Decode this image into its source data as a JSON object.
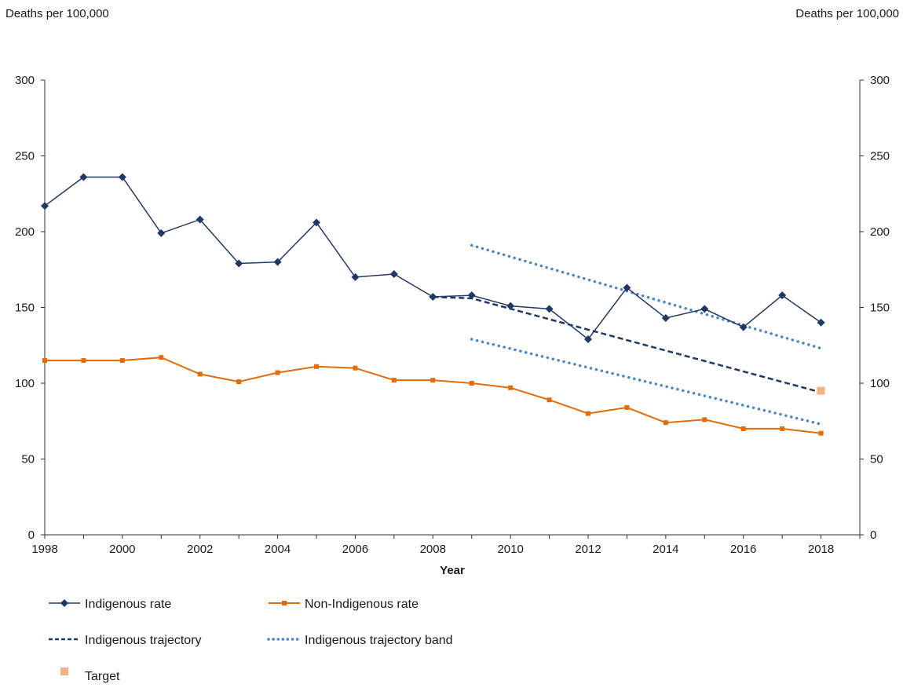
{
  "chart_data": {
    "type": "line",
    "title": "",
    "xlabel": "Year",
    "ylabel_left": "Deaths per 100,000",
    "ylabel_right": "Deaths per 100,000",
    "xlim": [
      1998,
      2019
    ],
    "ylim": [
      0,
      300
    ],
    "x_ticks": [
      1998,
      2000,
      2002,
      2004,
      2006,
      2008,
      2010,
      2012,
      2014,
      2016,
      2018
    ],
    "x_tick_labels": [
      "1998",
      "2000",
      "2002",
      "2004",
      "2006",
      "2008",
      "2010",
      "2012",
      "2014",
      "2016",
      "2018"
    ],
    "y_ticks": [
      0,
      50,
      100,
      150,
      200,
      250,
      300
    ],
    "y_tick_labels": [
      "0",
      "50",
      "100",
      "150",
      "200",
      "250",
      "300"
    ],
    "grid": false,
    "legend_position": "bottom",
    "series": [
      {
        "name": "Indigenous rate",
        "style": "line-diamond",
        "color": "#1f3864",
        "x": [
          1998,
          1999,
          2000,
          2001,
          2002,
          2003,
          2004,
          2005,
          2006,
          2007,
          2008,
          2009,
          2010,
          2011,
          2012,
          2013,
          2014,
          2015,
          2016,
          2017,
          2018
        ],
        "values": [
          217,
          236,
          236,
          199,
          208,
          179,
          180,
          206,
          170,
          172,
          157,
          158,
          151,
          149,
          129,
          163,
          143,
          149,
          137,
          158,
          140
        ]
      },
      {
        "name": "Non-Indigenous rate",
        "style": "line-square",
        "color": "#e36c0a",
        "x": [
          1998,
          1999,
          2000,
          2001,
          2002,
          2003,
          2004,
          2005,
          2006,
          2007,
          2008,
          2009,
          2010,
          2011,
          2012,
          2013,
          2014,
          2015,
          2016,
          2017,
          2018
        ],
        "values": [
          115,
          115,
          115,
          117,
          106,
          101,
          107,
          111,
          110,
          102,
          102,
          100,
          97,
          89,
          80,
          84,
          74,
          76,
          70,
          70,
          67
        ]
      },
      {
        "name": "Indigenous trajectory",
        "style": "dashed",
        "color": "#1f3864",
        "x": [
          2008,
          2009,
          2018
        ],
        "values": [
          157,
          156,
          94
        ]
      },
      {
        "name": "Indigenous trajectory band",
        "style": "dotted",
        "color": "#4a86c5",
        "segments": [
          {
            "x": [
              2009,
              2018
            ],
            "values": [
              191,
              123
            ]
          },
          {
            "x": [
              2009,
              2018
            ],
            "values": [
              129,
              73
            ]
          }
        ]
      },
      {
        "name": "Target",
        "style": "marker-only",
        "color": "#f4b183",
        "x": [
          2018
        ],
        "values": [
          95
        ]
      }
    ]
  }
}
